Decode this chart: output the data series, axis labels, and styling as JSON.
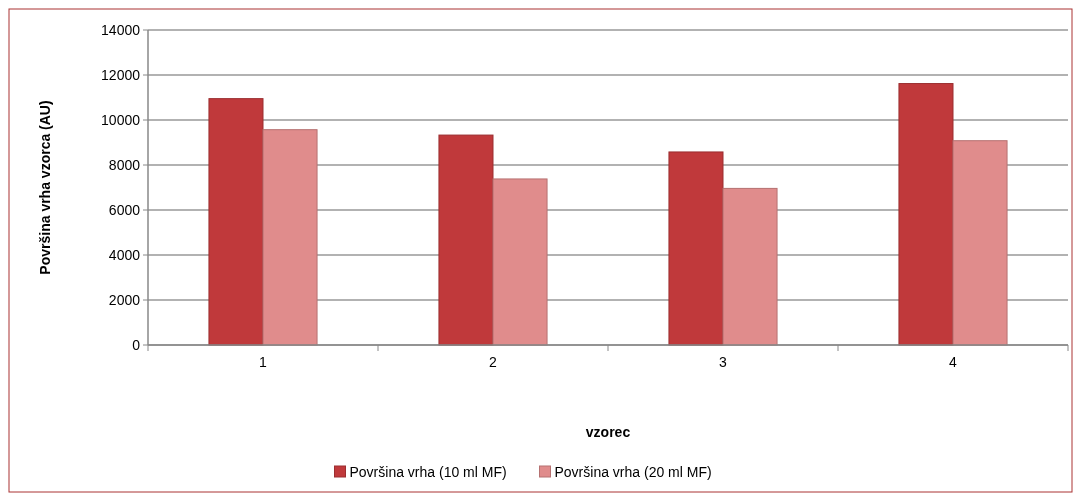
{
  "chart_data": {
    "type": "bar",
    "xlabel": "vzorec",
    "ylabel": "Površina vrha vzorca (AU)",
    "categories": [
      "1",
      "2",
      "3",
      "4"
    ],
    "series": [
      {
        "name": "Površina vrha (10 ml MF)",
        "color": "#c0393b",
        "values": [
          10950,
          9330,
          8580,
          11620
        ]
      },
      {
        "name": "Površina vrha (20 ml MF)",
        "color": "#e08c8c",
        "values": [
          9570,
          7380,
          6960,
          9080
        ]
      }
    ],
    "ylim": [
      0,
      14000
    ],
    "yticks": [
      0,
      2000,
      4000,
      6000,
      8000,
      10000,
      12000,
      14000
    ],
    "grid": "y",
    "legend": "bottom"
  }
}
